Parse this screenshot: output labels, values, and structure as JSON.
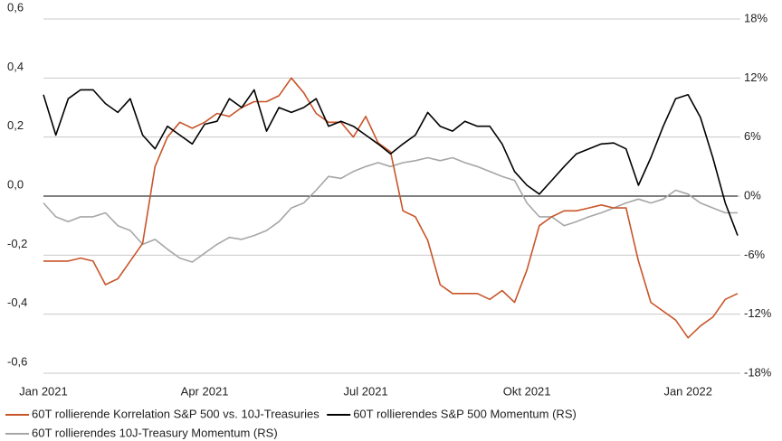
{
  "chart_data": {
    "type": "line",
    "categories": [
      "Jan 2021",
      null,
      null,
      null,
      null,
      null,
      null,
      null,
      null,
      null,
      null,
      null,
      null,
      "Apr 2021",
      null,
      null,
      null,
      null,
      null,
      null,
      null,
      null,
      null,
      null,
      null,
      null,
      "Jul 2021",
      null,
      null,
      null,
      null,
      null,
      null,
      null,
      null,
      null,
      null,
      null,
      null,
      "Okt 2021",
      null,
      null,
      null,
      null,
      null,
      null,
      null,
      null,
      null,
      null,
      null,
      null,
      "Jan 2022",
      null,
      null,
      null,
      null
    ],
    "ylim": [
      -0.6,
      0.6
    ],
    "yticks": [
      {
        "value": -0.6,
        "label": "-0,6"
      },
      {
        "value": -0.4,
        "label": "-0,4"
      },
      {
        "value": -0.2,
        "label": "-0,2"
      },
      {
        "value": 0,
        "label": "0,0"
      },
      {
        "value": 0.2,
        "label": "0,2"
      },
      {
        "value": 0.4,
        "label": "0,4"
      },
      {
        "value": 0.6,
        "label": "0,6"
      }
    ],
    "y2lim": [
      -18,
      18
    ],
    "y2ticks": [
      {
        "value": -18,
        "label": "-18%"
      },
      {
        "value": -12,
        "label": "-12%"
      },
      {
        "value": -6,
        "label": "-6%"
      },
      {
        "value": 0,
        "label": "0%"
      },
      {
        "value": 6,
        "label": "6%"
      },
      {
        "value": 12,
        "label": "12%"
      },
      {
        "value": 18,
        "label": "18%"
      }
    ],
    "grid": true,
    "legend": "bottom",
    "series": [
      {
        "name": "60T rollierende Korrelation S&P 500 vs. 10J-Treasuries",
        "color": "#c8552a",
        "values": [
          -0.22,
          -0.22,
          -0.22,
          -0.21,
          -0.22,
          -0.3,
          -0.28,
          -0.22,
          -0.16,
          0.1,
          0.2,
          0.25,
          0.23,
          0.25,
          0.28,
          0.27,
          0.3,
          0.32,
          0.32,
          0.34,
          0.4,
          0.35,
          0.28,
          0.25,
          0.25,
          0.2,
          0.27,
          0.18,
          0.15,
          -0.05,
          -0.07,
          -0.15,
          -0.3,
          -0.33,
          -0.33,
          -0.33,
          -0.35,
          -0.32,
          -0.36,
          -0.25,
          -0.1,
          -0.07,
          -0.05,
          -0.05,
          -0.04,
          -0.03,
          -0.04,
          -0.04,
          -0.22,
          -0.36,
          -0.39,
          -0.42,
          -0.48,
          -0.44,
          -0.41,
          -0.35,
          -0.33
        ]
      },
      {
        "name": "60T rollierendes S&P 500 Momentum (RS)",
        "color": "#000000",
        "axis": "y2",
        "values": [
          10.3,
          6.2,
          9.9,
          10.8,
          10.8,
          9.4,
          8.5,
          9.9,
          6.2,
          4.8,
          7.1,
          6.2,
          5.3,
          7.3,
          7.6,
          9.9,
          9,
          10.8,
          6.6,
          9,
          8.5,
          9,
          9.9,
          7.1,
          7.6,
          7.1,
          6.2,
          5.3,
          4.3,
          5.3,
          6.2,
          8.5,
          7.1,
          6.6,
          7.6,
          7.1,
          7.1,
          5.3,
          2.5,
          1.1,
          0.2,
          1.6,
          3,
          4.3,
          4.8,
          5.3,
          5.4,
          4.8,
          1.1,
          3.9,
          7.1,
          9.9,
          10.3,
          8,
          3.9,
          -0.7,
          -4
        ]
      },
      {
        "name": "60T rollierendes 10J-Treasury Momentum (RS)",
        "color": "#a6a6a6",
        "axis": "y2",
        "values": [
          -0.7,
          -2.1,
          -2.6,
          -2.1,
          -2.1,
          -1.7,
          -3,
          -3.5,
          -4.9,
          -4.4,
          -5.4,
          -6.3,
          -6.7,
          -5.8,
          -4.9,
          -4.2,
          -4.4,
          -4,
          -3.5,
          -2.6,
          -1.2,
          -0.7,
          0.6,
          2,
          1.8,
          2.5,
          3,
          3.4,
          3,
          3.4,
          3.6,
          3.9,
          3.6,
          3.9,
          3.4,
          3,
          2.5,
          2,
          1.6,
          -0.7,
          -2.1,
          -2.1,
          -3,
          -2.6,
          -2.1,
          -1.7,
          -1.2,
          -0.7,
          -0.3,
          -0.7,
          -0.3,
          0.6,
          0.2,
          -0.7,
          -1.2,
          -1.7,
          -1.7
        ]
      }
    ]
  }
}
